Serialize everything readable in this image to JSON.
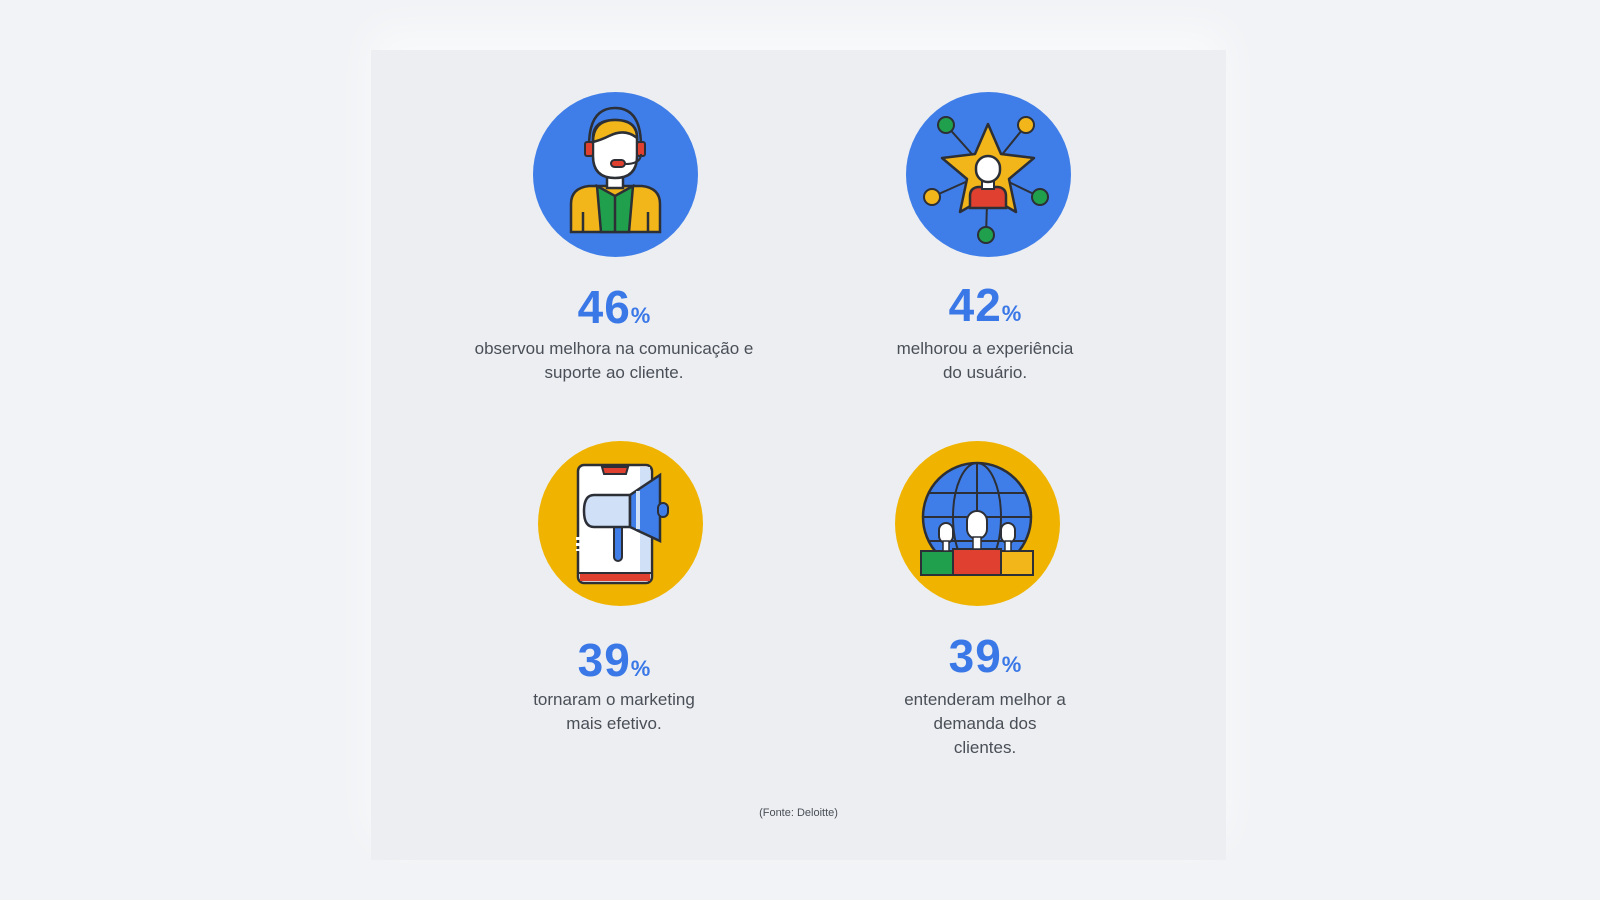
{
  "stats": [
    {
      "value": "46",
      "unit": "%",
      "caption_line1": "observou melhora na comunicação e",
      "caption_line2": "suporte ao cliente.",
      "icon": "support-agent-icon",
      "color": "#3f7ee8"
    },
    {
      "value": "42",
      "unit": "%",
      "caption_line1": "melhorou a experiência",
      "caption_line2": "do usuário.",
      "icon": "star-user-network-icon",
      "color": "#3f7ee8"
    },
    {
      "value": "39",
      "unit": "%",
      "caption_line1": "tornaram o marketing",
      "caption_line2": "mais efetivo.",
      "icon": "phone-megaphone-icon",
      "color": "#f0b400"
    },
    {
      "value": "39",
      "unit": "%",
      "caption_line1": "entenderam melhor a",
      "caption_line2": "demanda dos",
      "caption_line3": "clientes.",
      "icon": "globe-people-icon",
      "color": "#f0b400"
    }
  ],
  "source": "(Fonte: Deloitte)",
  "colors": {
    "accent": "#3b78e7",
    "blue": "#3f7ee8",
    "yellow": "#f0b400",
    "green": "#1e9e4a",
    "red": "#e0402f"
  }
}
